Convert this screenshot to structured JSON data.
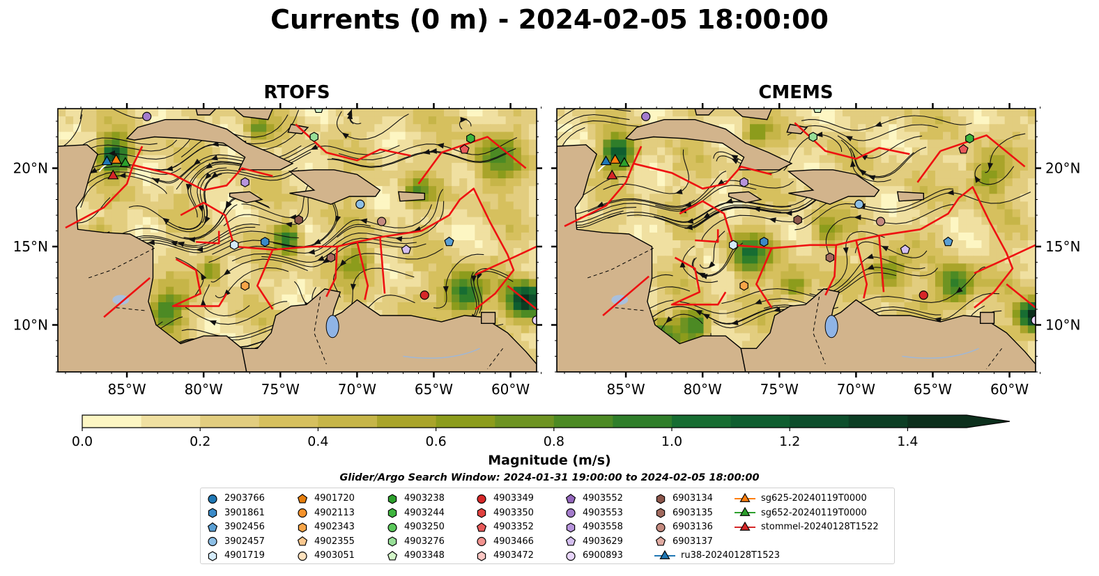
{
  "title": "Currents (0 m) - 2024-02-05 18:00:00",
  "panels": [
    {
      "name": "RTOFS"
    },
    {
      "name": "CMEMS"
    }
  ],
  "chart_data": {
    "type": "heatmap",
    "title": "Currents (0 m) - 2024-02-05 18:00:00",
    "lon_ticks": [
      "85°W",
      "80°W",
      "75°W",
      "70°W",
      "65°W",
      "60°W"
    ],
    "lat_ticks": [
      "20°N",
      "15°N",
      "10°N"
    ],
    "lon_values": [
      -85,
      -80,
      -75,
      -70,
      -65,
      -60
    ],
    "lat_values": [
      20,
      15,
      10
    ],
    "lon_range": [
      -89.5,
      -58.3
    ],
    "lat_range": [
      7.0,
      23.8
    ],
    "colorbar": {
      "label": "Magnitude (m/s)",
      "ticks": [
        "0.0",
        "0.2",
        "0.4",
        "0.6",
        "0.8",
        "1.0",
        "1.2",
        "1.4"
      ],
      "range": [
        0,
        1.5
      ],
      "step": 0.1,
      "extend": "max",
      "colors": [
        "#fdf6c3",
        "#f0e0a1",
        "#e2cd7f",
        "#d6c05e",
        "#c6b548",
        "#a9a42a",
        "#8c9c1c",
        "#6e9322",
        "#4c8a24",
        "#2f7e2a",
        "#176d32",
        "#0f5e30",
        "#0d4e2c",
        "#0c3e24",
        "#0c2f1c"
      ]
    },
    "floats": [
      {
        "id": "2903766",
        "marker": "circle",
        "color": "#1f77b4",
        "lon": null,
        "lat": null
      },
      {
        "id": "3901861",
        "marker": "hexagon",
        "color": "#3a8ac8",
        "lon": -76.0,
        "lat": 15.3
      },
      {
        "id": "3902456",
        "marker": "pentagon",
        "color": "#5a9fd4",
        "lon": -64.0,
        "lat": 15.3
      },
      {
        "id": "3902457",
        "marker": "circle",
        "color": "#8dbfe6",
        "lon": -69.8,
        "lat": 17.7
      },
      {
        "id": "4901719",
        "marker": "hexagon",
        "color": "#d4ebfb",
        "lon": -78.0,
        "lat": 15.1
      },
      {
        "id": "4901720",
        "marker": "pentagon",
        "color": "#e67e0c",
        "lon": null,
        "lat": null
      },
      {
        "id": "4902113",
        "marker": "circle",
        "color": "#f5922b",
        "lon": null,
        "lat": null
      },
      {
        "id": "4902343",
        "marker": "hexagon",
        "color": "#f7a548",
        "lon": -77.3,
        "lat": 12.5
      },
      {
        "id": "4902355",
        "marker": "pentagon",
        "color": "#fbc88f",
        "lon": null,
        "lat": null
      },
      {
        "id": "4903051",
        "marker": "circle",
        "color": "#fde1bd",
        "lon": null,
        "lat": null
      },
      {
        "id": "4903238",
        "marker": "hexagon",
        "color": "#2ca02c",
        "lon": null,
        "lat": null
      },
      {
        "id": "4903244",
        "marker": "hexagon",
        "color": "#3db43d",
        "lon": -62.6,
        "lat": 21.9
      },
      {
        "id": "4903250",
        "marker": "circle",
        "color": "#5ac85a",
        "lon": null,
        "lat": null
      },
      {
        "id": "4903276",
        "marker": "hexagon",
        "color": "#98df98",
        "lon": -72.8,
        "lat": 22.0
      },
      {
        "id": "4903348",
        "marker": "pentagon",
        "color": "#d3f7c8",
        "lon": -72.5,
        "lat": 23.8
      },
      {
        "id": "4903349",
        "marker": "circle",
        "color": "#d62728",
        "lon": -65.6,
        "lat": 11.9
      },
      {
        "id": "4903350",
        "marker": "hexagon",
        "color": "#e0413f",
        "lon": null,
        "lat": null
      },
      {
        "id": "4903352",
        "marker": "pentagon",
        "color": "#e85a5a",
        "lon": -63.0,
        "lat": 21.2
      },
      {
        "id": "4903466",
        "marker": "circle",
        "color": "#f2938f",
        "lon": null,
        "lat": null
      },
      {
        "id": "4903472",
        "marker": "hexagon",
        "color": "#fbc6c3",
        "lon": null,
        "lat": null
      },
      {
        "id": "4903552",
        "marker": "pentagon",
        "color": "#9467bd",
        "lon": null,
        "lat": null
      },
      {
        "id": "4903553",
        "marker": "circle",
        "color": "#a47ccc",
        "lon": -83.7,
        "lat": 23.3
      },
      {
        "id": "4903558",
        "marker": "hexagon",
        "color": "#b794dc",
        "lon": -77.3,
        "lat": 19.1
      },
      {
        "id": "4903629",
        "marker": "pentagon",
        "color": "#d4bff0",
        "lon": -66.8,
        "lat": 14.8
      },
      {
        "id": "6900893",
        "marker": "circle",
        "color": "#e8d5fb",
        "lon": -58.3,
        "lat": 10.3
      },
      {
        "id": "6903134",
        "marker": "hexagon",
        "color": "#8c564b",
        "lon": -73.8,
        "lat": 16.7
      },
      {
        "id": "6903135",
        "marker": "hexagon",
        "color": "#a16a5e",
        "lon": -71.7,
        "lat": 14.3
      },
      {
        "id": "6903136",
        "marker": "circle",
        "color": "#c48a7f",
        "lon": -68.4,
        "lat": 16.6
      },
      {
        "id": "6903137",
        "marker": "pentagon",
        "color": "#e0aba2",
        "lon": null,
        "lat": null
      }
    ],
    "gliders": [
      {
        "id": "ru38-20240128T1523",
        "color": "#1f77b4",
        "lon": -86.3,
        "lat": 20.4
      },
      {
        "id": "sg625-20240119T0000",
        "color": "#ff7f0e",
        "lon": -85.7,
        "lat": 20.5
      },
      {
        "id": "sg652-20240119T0000",
        "color": "#2ca02c",
        "lon": -85.1,
        "lat": 20.3
      },
      {
        "id": "stommel-20240128T1522",
        "color": "#d62728",
        "lon": -85.9,
        "lat": 19.5
      }
    ]
  },
  "search_window": "Glider/Argo Search Window: 2024-01-31 19:00:00 to 2024-02-05 18:00:00"
}
